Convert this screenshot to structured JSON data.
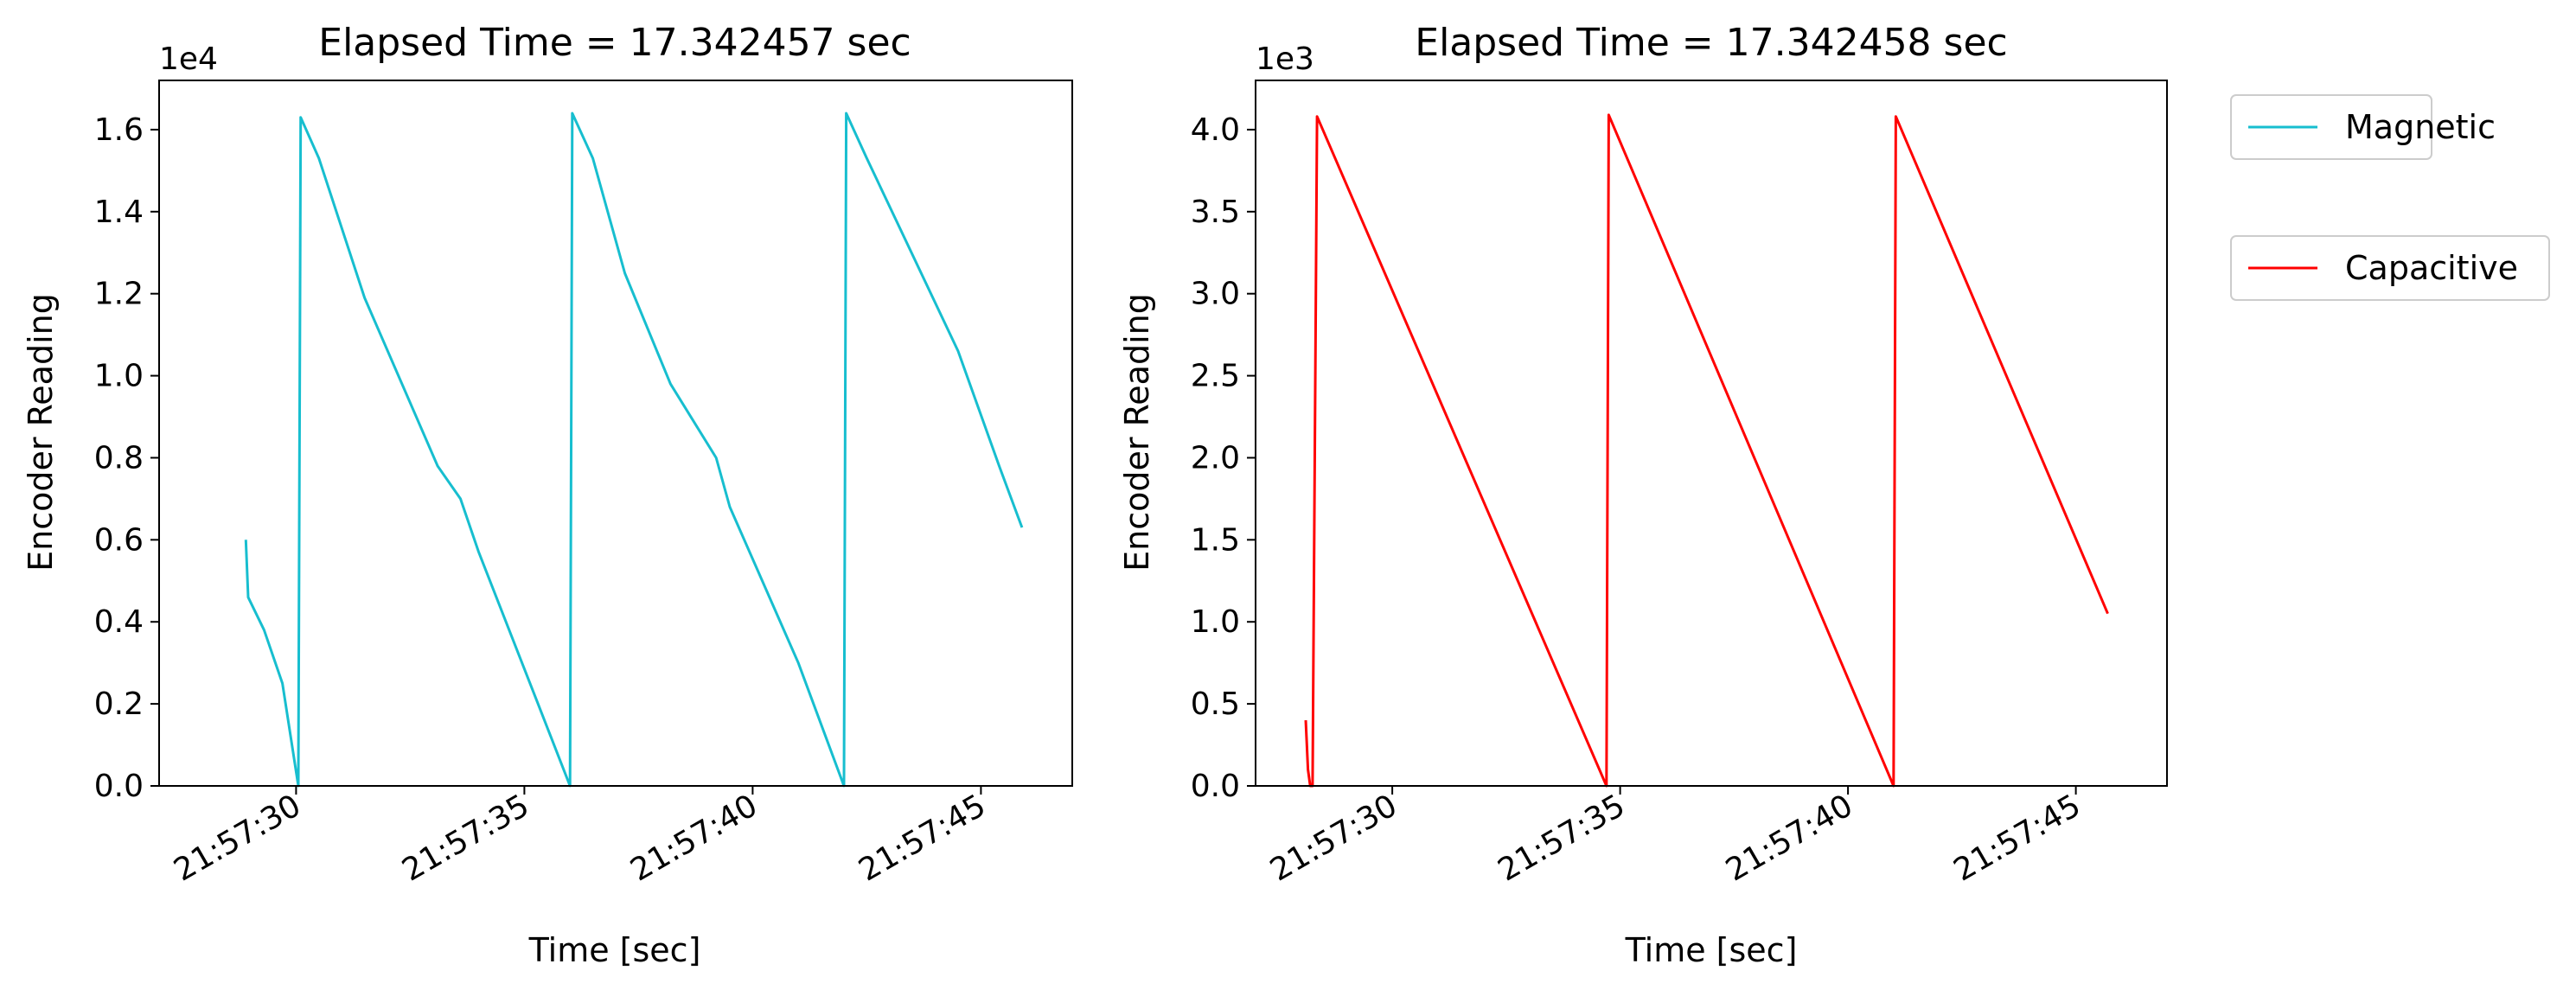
{
  "chart_data": [
    {
      "type": "line",
      "title": "Elapsed Time = 17.342457 sec",
      "xlabel": "Time [sec]",
      "ylabel": "Encoder Reading",
      "y_offset_label": "1e4",
      "xlim": [
        "21:57:27",
        "21:57:47"
      ],
      "ylim": [
        0,
        17200
      ],
      "x_ticks": [
        "21:57:30",
        "21:57:35",
        "21:57:40",
        "21:57:45"
      ],
      "y_ticks": [
        "0.0",
        "0.2",
        "0.4",
        "0.6",
        "0.8",
        "1.0",
        "1.2",
        "1.4",
        "1.6"
      ],
      "y_tick_values": [
        0,
        2000,
        4000,
        6000,
        8000,
        10000,
        12000,
        14000,
        16000
      ],
      "grid": false,
      "series": [
        {
          "name": "Magnetic",
          "color": "#17becf",
          "x": [
            "21:57:28.9",
            "21:57:28.95",
            "21:57:29.3",
            "21:57:29.7",
            "21:57:30.05",
            "21:57:30.1",
            "21:57:30.5",
            "21:57:31.5",
            "21:57:33.1",
            "21:57:33.6",
            "21:57:34.0",
            "21:57:35.3",
            "21:57:36.0",
            "21:57:36.05",
            "21:57:36.5",
            "21:57:37.2",
            "21:57:38.2",
            "21:57:39.2",
            "21:57:39.5",
            "21:57:41.0",
            "21:57:42.0",
            "21:57:42.05",
            "21:57:42.5",
            "21:57:44.5",
            "21:57:45.4",
            "21:57:45.9"
          ],
          "y": [
            6000,
            4600,
            3800,
            2500,
            0,
            16300,
            15300,
            11900,
            7800,
            7000,
            5700,
            2000,
            0,
            16400,
            15300,
            12500,
            9800,
            8000,
            6800,
            3000,
            0,
            16400,
            15300,
            10600,
            7800,
            6300
          ]
        }
      ]
    },
    {
      "type": "line",
      "title": "Elapsed Time = 17.342458 sec",
      "xlabel": "Time [sec]",
      "ylabel": "Encoder Reading",
      "y_offset_label": "1e3",
      "xlim": [
        "21:57:27",
        "21:57:47"
      ],
      "ylim": [
        0,
        4300
      ],
      "x_ticks": [
        "21:57:30",
        "21:57:35",
        "21:57:40",
        "21:57:45"
      ],
      "y_ticks": [
        "0.0",
        "0.5",
        "1.0",
        "1.5",
        "2.0",
        "2.5",
        "3.0",
        "3.5",
        "4.0"
      ],
      "y_tick_values": [
        0,
        500,
        1000,
        1500,
        2000,
        2500,
        3000,
        3500,
        4000
      ],
      "grid": false,
      "series": [
        {
          "name": "Capacitive",
          "color": "#ff0000",
          "x": [
            "21:57:28.1",
            "21:57:28.15",
            "21:57:28.2",
            "21:57:28.25",
            "21:57:28.35",
            "21:57:34.7",
            "21:57:34.75",
            "21:57:41.0",
            "21:57:41.05",
            "21:57:45.7"
          ],
          "y": [
            400,
            100,
            0,
            0,
            4080,
            0,
            4090,
            0,
            4080,
            1050
          ]
        }
      ],
      "legend_entries": [
        {
          "label": "Magnetic",
          "color": "#17becf"
        },
        {
          "label": "Capacitive",
          "color": "#ff0000"
        }
      ],
      "legend_placement": "outside right, top"
    }
  ]
}
